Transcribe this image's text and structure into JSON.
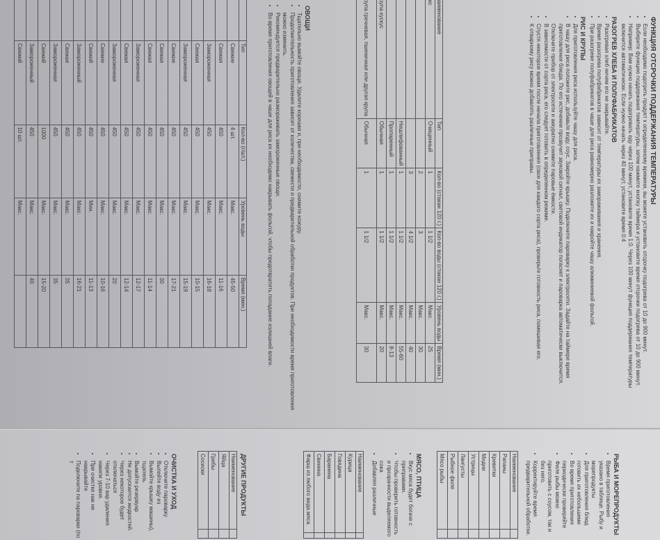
{
  "left_page": {
    "delay": {
      "title": "ФУНКЦИЯ ОТСРОЧКИ ПОДДЕРЖАНИЯ ТЕМПЕРАТУРЫ",
      "bullets": [
        "Если необходимо подогреть продукт к определенному времени, вы можете установить отсрочку подогрева от 10 до 900 минут.",
        "Выберите функцию поддержания температуры, затем нажмите кнопку таймера и установите время отсрочки подогрева от 10 до 900 минут.",
        "Например: Вам нужно начать подогревать еду через 100 минут, установите время 1:0. Через 100 минут функция поддержания температуры включится автоматически. Если нужно начать через 40 минут, установите время 0:4"
      ]
    },
    "bread": {
      "title": "РАЗОГРЕВ ХЛЕБА И ПОЛУФАБРИКАТОВ",
      "bullets": [
        "Разогревая хлеб ничем его не накрывайте.",
        "Время разогрева полуфабрикатов зависит от температуры их замораживания и хранения.",
        "При разогреве полуфабрикатов в чаше для риса равномерно разложите их и накройте чашу алюминиевой фольгой."
      ]
    },
    "rice": {
      "title": "РИС И КРУПЫ",
      "bullets": [
        "Для приготовления риса используйте чашу для риса.",
        "В чашу для риса положите рис, добавьте воду, соус. Закройте крышку. Подключите пароварку к электросети. Задайте на таймере время приготовления блюда. По его истечении прозвучит звуковой сигнал, световой индикатор погаснет и пароварка автоматически выключится. Отключите прибор от электросети и аккуратно снимите паровые ёмкости.",
        "В зависимости от сорта риса, его следует готовить в определенном режиме.",
        "Спустя некоторое время после начала приготовления (свое для каждого сорта риса), проверьте готовность риса, помешивая его.",
        "К отварному рису можно добавлять различные приправы."
      ],
      "table": {
        "headers": [
          "Наименование",
          "Тип",
          "Кол-во (стакан 120 г.)",
          "Кол-во воды (стакан 120 г.)",
          "Уровень воды",
          "Время (мин.)"
        ],
        "rows": [
          [
            "Рис",
            "Очищенный",
            "1",
            "1 1/2",
            "Макс.",
            "25"
          ],
          [
            "",
            "",
            "2",
            "3",
            "Макс.",
            "30"
          ],
          [
            "",
            "",
            "3",
            "4 1/2",
            "Макс.",
            "40"
          ],
          [
            "",
            "Нешлифованный",
            "1",
            "1 1/2",
            "Макс.",
            "55-60"
          ],
          [
            "",
            "Пропаренный",
            "1",
            "1 1/2",
            "Макс.",
            "8-13"
          ],
          [
            "Крупа кускус",
            "Обычная",
            "1",
            "1 1/2",
            "Макс.",
            "20"
          ],
          [
            "Крупа гречневая, пшеничная или другая крупа",
            "Обычная",
            "1",
            "1 1/2",
            "Макс.",
            "30"
          ]
        ]
      }
    },
    "vegetables": {
      "title": "ОВОЩИ",
      "bullets": [
        "Тщательно вымойте овощи. Удалите корешки и, при необходимости, снимите кожуру.",
        "Продолжительность приготовления зависит от количества, свежести и предварительной обработки продуктов. При необходимости время приготовления можно изменить.",
        "Рекомендуется предварительно размораживать замороженные овощи.",
        "Во время приготовления овощей в чаше для риса их необходимо накрывать фольгой, чтобы предотвратить попадание излишней влаги."
      ],
      "table": {
        "headers": [
          "…менование",
          "Тип",
          "Кол-во (г/шт.)",
          "Уровень воды",
          "Время (мин.)"
        ],
        "rows": [
          [
            "…шки",
            "Свежие",
            "4 шт.",
            "Макс.",
            "45-50"
          ],
          [
            "…ва",
            "Свежая",
            "450",
            "Макс.",
            "11-16"
          ],
          [
            "",
            "Замороженная",
            "450",
            "Макс.",
            "16-18"
          ],
          [
            "…ста брокколи",
            "Свежая",
            "450",
            "Макс.",
            "10-15"
          ],
          [
            "",
            "Замороженная",
            "450",
            "Макс.",
            "15-19"
          ],
          [
            "…та …очанная",
            "Свежие",
            "450",
            "Макс.",
            "17-21"
          ],
          [
            "…ь",
            "Свежая",
            "450",
            "Макс.",
            "30"
          ],
          [
            "…я капуста",
            "Свежая",
            "450",
            "Макс.",
            "11-14"
          ],
          [
            "",
            "Замороженная",
            "450",
            "Макс.",
            "12-17"
          ],
          [
            "…лысая",
            "Свежая",
            "450",
            "Макс.",
            "12-14"
          ],
          [
            "",
            "Замороженная",
            "450",
            "Макс.",
            "20"
          ],
          [
            "",
            "Свежие",
            "450",
            "Макс.",
            "10-16"
          ],
          [
            "",
            "Свежий",
            "450",
            "Мин.",
            "11-13"
          ],
          [
            "",
            "Замороженный",
            "450",
            "Макс.",
            "16-21"
          ],
          [
            "…а",
            "Свежая",
            "450",
            "Макс.",
            "35"
          ],
          [
            "",
            "Замороженная",
            "450",
            "Макс.",
            "35"
          ],
          [
            "…рошек",
            "Свежий",
            "1000",
            "Макс.",
            "15-20"
          ],
          [
            "",
            "Замороженный",
            "450",
            "Макс.",
            "40"
          ],
          [
            "",
            "Свежий",
            "10 шт.",
            "Макс.",
            ""
          ]
        ]
      }
    }
  },
  "right_page": {
    "fish": {
      "title": "РЫБА И МОРЕПРОДУКТЫ",
      "bullets": [
        "Время приготовления указано в таблице. Рыбу и морепродукты",
        "Для приготовления блюд готовить их небольшими",
        "Во время приготовления периодически проверяйте",
        "Филе рыбы можно приготовить с соусом, так и без него.",
        "Корректируйте время предварительной обработки."
      ],
      "table_header": "Наименование",
      "items": [
        "Рапаны",
        "Креветки",
        "Мидии",
        "Устрицы",
        "Лангусты",
        "Рыбное филе",
        "Мясо рыбы"
      ]
    },
    "meat": {
      "title": "МЯСО, ПТИЦА",
      "bullets": [
        "Вкус мяса будет богаче с приправами.",
        "Чтобы проверить готовность и прозрачности выделяемого сока",
        "Добавляя различные"
      ],
      "table_header": "Наименование",
      "items": [
        "Курица",
        "Говядина",
        "Баранина",
        "Свинина",
        "Фарш из любого вида мяса"
      ]
    },
    "other": {
      "title": "ДРУГИЕ ПРОДУКТЫ",
      "table_header": "Наименование",
      "items": [
        "Яйца",
        "Грибы",
        "Сосиски"
      ]
    },
    "cleaning": {
      "title": "ОЧИСТКА И УХОД",
      "bullets": [
        "Отключите пароварку",
        "Вылейте воду из",
        "Вымойте крышку машины), тщатель",
        "Вымойте резервуар",
        "Не допускается жидкостей.",
        "Через некоторое будет отключаться",
        "Через 7-10 вар удаления накипи уровня.",
        "При очистке нак не накрывайте",
        "Подключите па пароварки (по т"
      ]
    }
  }
}
